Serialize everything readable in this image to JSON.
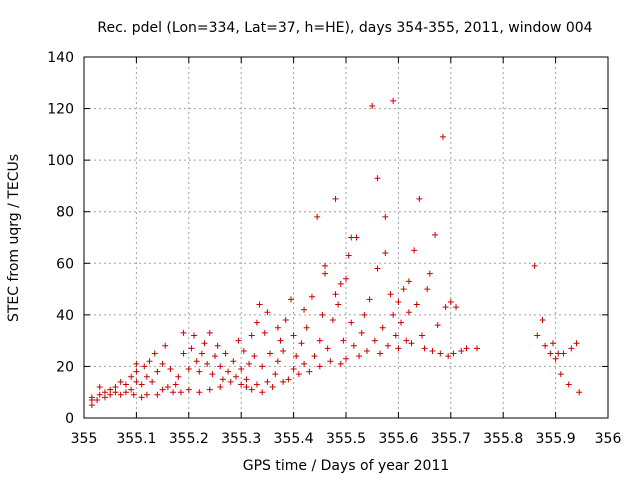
{
  "chart_data": {
    "type": "scatter",
    "title": "Rec. pdel (Lon=334, Lat=37, h=HE), days 354-355, 2011, window 004",
    "xlabel": "GPS time / Days of year 2011",
    "ylabel": "STEC from uqrg / TECUs",
    "xlim": [
      355,
      356
    ],
    "ylim": [
      0,
      140
    ],
    "xticks": [
      "355",
      "355.1",
      "355.2",
      "355.3",
      "355.4",
      "355.5",
      "355.6",
      "355.7",
      "355.8",
      "355.9",
      "356"
    ],
    "yticks": [
      "0",
      "20",
      "40",
      "60",
      "80",
      "100",
      "120",
      "140"
    ],
    "grid": true,
    "marker": "plus",
    "marker_color": "#cc0000",
    "points": [
      [
        355.015,
        5
      ],
      [
        355.015,
        7
      ],
      [
        355.015,
        8
      ],
      [
        355.025,
        7
      ],
      [
        355.03,
        9
      ],
      [
        355.03,
        12
      ],
      [
        355.04,
        8
      ],
      [
        355.04,
        10
      ],
      [
        355.05,
        9
      ],
      [
        355.05,
        11
      ],
      [
        355.06,
        10
      ],
      [
        355.06,
        12
      ],
      [
        355.07,
        9
      ],
      [
        355.07,
        14
      ],
      [
        355.08,
        10
      ],
      [
        355.08,
        13
      ],
      [
        355.09,
        11
      ],
      [
        355.09,
        16
      ],
      [
        355.095,
        9
      ],
      [
        355.1,
        14
      ],
      [
        355.1,
        18
      ],
      [
        355.1,
        21
      ],
      [
        355.11,
        8
      ],
      [
        355.11,
        13
      ],
      [
        355.115,
        20
      ],
      [
        355.12,
        9
      ],
      [
        355.12,
        16
      ],
      [
        355.125,
        22
      ],
      [
        355.13,
        14
      ],
      [
        355.135,
        25
      ],
      [
        355.14,
        9
      ],
      [
        355.14,
        18
      ],
      [
        355.15,
        11
      ],
      [
        355.15,
        21
      ],
      [
        355.155,
        28
      ],
      [
        355.16,
        12
      ],
      [
        355.165,
        19
      ],
      [
        355.17,
        10
      ],
      [
        355.175,
        13
      ],
      [
        355.18,
        16
      ],
      [
        355.185,
        10
      ],
      [
        355.19,
        25
      ],
      [
        355.19,
        33
      ],
      [
        355.2,
        11
      ],
      [
        355.2,
        19
      ],
      [
        355.205,
        27
      ],
      [
        355.21,
        32
      ],
      [
        355.215,
        22
      ],
      [
        355.22,
        10
      ],
      [
        355.22,
        18
      ],
      [
        355.225,
        25
      ],
      [
        355.23,
        29
      ],
      [
        355.235,
        21
      ],
      [
        355.24,
        11
      ],
      [
        355.24,
        33
      ],
      [
        355.245,
        17
      ],
      [
        355.25,
        24
      ],
      [
        355.255,
        28
      ],
      [
        355.26,
        12
      ],
      [
        355.26,
        20
      ],
      [
        355.265,
        15
      ],
      [
        355.27,
        25
      ],
      [
        355.275,
        18
      ],
      [
        355.28,
        14
      ],
      [
        355.285,
        22
      ],
      [
        355.29,
        16
      ],
      [
        355.295,
        30
      ],
      [
        355.3,
        13
      ],
      [
        355.3,
        19
      ],
      [
        355.305,
        26
      ],
      [
        355.31,
        12
      ],
      [
        355.31,
        15
      ],
      [
        355.315,
        21
      ],
      [
        355.32,
        11
      ],
      [
        355.32,
        32
      ],
      [
        355.325,
        24
      ],
      [
        355.33,
        13
      ],
      [
        355.33,
        37
      ],
      [
        355.335,
        44
      ],
      [
        355.34,
        10
      ],
      [
        355.34,
        20
      ],
      [
        355.345,
        33
      ],
      [
        355.35,
        14
      ],
      [
        355.35,
        41
      ],
      [
        355.355,
        25
      ],
      [
        355.36,
        12
      ],
      [
        355.365,
        17
      ],
      [
        355.37,
        22
      ],
      [
        355.37,
        35
      ],
      [
        355.375,
        30
      ],
      [
        355.38,
        14
      ],
      [
        355.38,
        26
      ],
      [
        355.385,
        38
      ],
      [
        355.39,
        15
      ],
      [
        355.395,
        46
      ],
      [
        355.4,
        19
      ],
      [
        355.4,
        32
      ],
      [
        355.405,
        24
      ],
      [
        355.41,
        17
      ],
      [
        355.415,
        29
      ],
      [
        355.42,
        21
      ],
      [
        355.42,
        42
      ],
      [
        355.425,
        35
      ],
      [
        355.43,
        18
      ],
      [
        355.435,
        47
      ],
      [
        355.44,
        24
      ],
      [
        355.445,
        78
      ],
      [
        355.45,
        30
      ],
      [
        355.45,
        20
      ],
      [
        355.455,
        40
      ],
      [
        355.46,
        56
      ],
      [
        355.46,
        59
      ],
      [
        355.465,
        27
      ],
      [
        355.47,
        22
      ],
      [
        355.475,
        38
      ],
      [
        355.48,
        48
      ],
      [
        355.48,
        85
      ],
      [
        355.485,
        44
      ],
      [
        355.49,
        21
      ],
      [
        355.49,
        52
      ],
      [
        355.495,
        30
      ],
      [
        355.5,
        23
      ],
      [
        355.5,
        54
      ],
      [
        355.505,
        63
      ],
      [
        355.51,
        70
      ],
      [
        355.51,
        37
      ],
      [
        355.515,
        28
      ],
      [
        355.52,
        70
      ],
      [
        355.525,
        24
      ],
      [
        355.53,
        33
      ],
      [
        355.535,
        40
      ],
      [
        355.54,
        26
      ],
      [
        355.545,
        46
      ],
      [
        355.55,
        121
      ],
      [
        355.555,
        30
      ],
      [
        355.56,
        58
      ],
      [
        355.56,
        93
      ],
      [
        355.565,
        25
      ],
      [
        355.57,
        35
      ],
      [
        355.575,
        64
      ],
      [
        355.575,
        78
      ],
      [
        355.58,
        28
      ],
      [
        355.585,
        48
      ],
      [
        355.59,
        123
      ],
      [
        355.59,
        40
      ],
      [
        355.595,
        32
      ],
      [
        355.6,
        27
      ],
      [
        355.6,
        45
      ],
      [
        355.605,
        37
      ],
      [
        355.61,
        50
      ],
      [
        355.615,
        30
      ],
      [
        355.62,
        53
      ],
      [
        355.62,
        41
      ],
      [
        355.625,
        29
      ],
      [
        355.63,
        65
      ],
      [
        355.635,
        44
      ],
      [
        355.64,
        85
      ],
      [
        355.645,
        32
      ],
      [
        355.65,
        27
      ],
      [
        355.655,
        50
      ],
      [
        355.66,
        56
      ],
      [
        355.665,
        26
      ],
      [
        355.67,
        71
      ],
      [
        355.675,
        36
      ],
      [
        355.68,
        25
      ],
      [
        355.685,
        109
      ],
      [
        355.69,
        43
      ],
      [
        355.695,
        24
      ],
      [
        355.7,
        45
      ],
      [
        355.705,
        25
      ],
      [
        355.71,
        43
      ],
      [
        355.72,
        26
      ],
      [
        355.73,
        27
      ],
      [
        355.75,
        27
      ],
      [
        355.86,
        59
      ],
      [
        355.865,
        32
      ],
      [
        355.875,
        38
      ],
      [
        355.88,
        28
      ],
      [
        355.89,
        25
      ],
      [
        355.895,
        29
      ],
      [
        355.9,
        23
      ],
      [
        355.905,
        25
      ],
      [
        355.91,
        17
      ],
      [
        355.915,
        25
      ],
      [
        355.925,
        13
      ],
      [
        355.93,
        27
      ],
      [
        355.94,
        29
      ],
      [
        355.945,
        10
      ]
    ]
  }
}
